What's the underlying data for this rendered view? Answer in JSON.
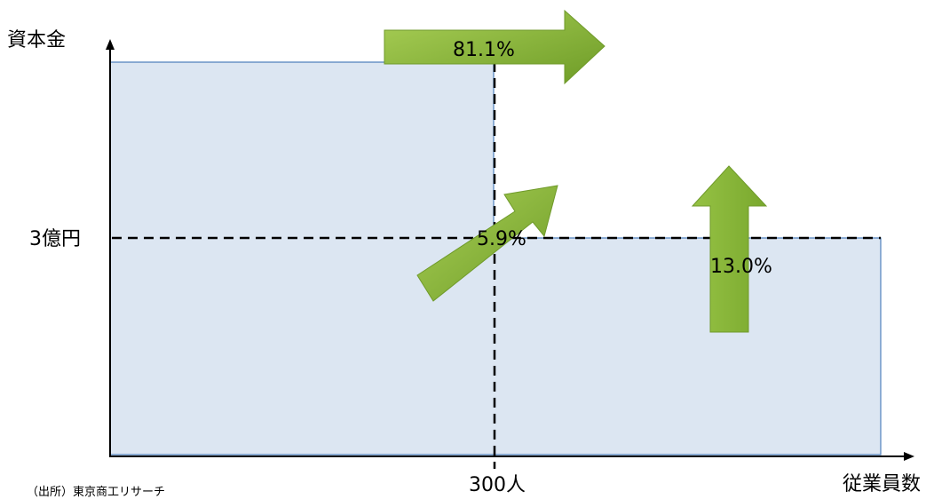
{
  "axes": {
    "y_label": "資本金",
    "x_label": "従業員数",
    "y_threshold_label": "3億円",
    "x_threshold_label": "300人"
  },
  "arrows": {
    "right": {
      "label": "81.1%",
      "direction": "right"
    },
    "diagonal": {
      "label": "5.9%",
      "direction": "up-right"
    },
    "up": {
      "label": "13.0%",
      "direction": "up"
    }
  },
  "source": "（出所）東京商工リサーチ",
  "colors": {
    "region_fill": "#dce6f2",
    "region_stroke": "#4f81bd",
    "arrow_fill": "#8dba3c",
    "arrow_stroke": "#6f9a2a",
    "dash": "#000000"
  }
}
